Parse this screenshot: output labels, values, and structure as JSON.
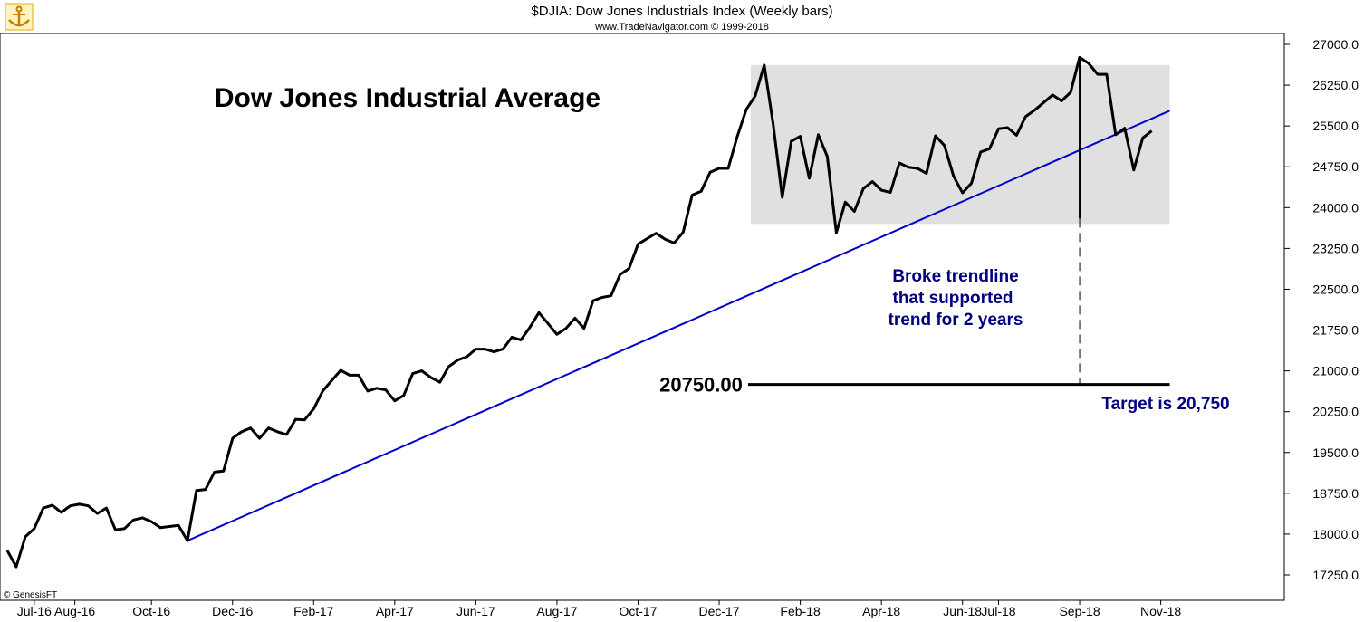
{
  "header": {
    "title": "$DJIA:  Dow Jones Industrials Index  (Weekly bars)",
    "subtitle": "www.TradeNavigator.com © 1999-2018"
  },
  "logo": {
    "icon": "anchor-logo-icon",
    "color": "#e0b000"
  },
  "watermark": "© GenesisFT",
  "colors": {
    "price": "#000000",
    "trendline": "#0000cc",
    "zone": "#e0e0e0",
    "annotation": "#000080"
  },
  "chart_data": {
    "type": "line",
    "title": "Dow Jones Industrial Average",
    "xlabel": "",
    "ylabel": "",
    "ylim": [
      16900,
      27250
    ],
    "grid": false,
    "y_ticks": [
      17250,
      18000,
      18750,
      19500,
      20250,
      21000,
      21750,
      22500,
      23250,
      24000,
      24750,
      25500,
      26250,
      27000
    ],
    "y_tick_labels": [
      "17250.0",
      "18000.0",
      "18750.0",
      "19500.0",
      "20250.0",
      "21000.0",
      "21750.0",
      "22500.0",
      "23250.0",
      "24000.0",
      "24750.0",
      "25500.0",
      "26250.0",
      "27000.0"
    ],
    "x_ticks": [
      {
        "label": "Jul-16",
        "week": 3
      },
      {
        "label": "Aug-16",
        "week": 7.5
      },
      {
        "label": "Oct-16",
        "week": 16
      },
      {
        "label": "Dec-16",
        "week": 25
      },
      {
        "label": "Feb-17",
        "week": 34
      },
      {
        "label": "Apr-17",
        "week": 43
      },
      {
        "label": "Jun-17",
        "week": 52
      },
      {
        "label": "Aug-17",
        "week": 61
      },
      {
        "label": "Oct-17",
        "week": 70
      },
      {
        "label": "Dec-17",
        "week": 79
      },
      {
        "label": "Feb-18",
        "week": 88
      },
      {
        "label": "Apr-18",
        "week": 97
      },
      {
        "label": "Jun-18",
        "week": 106
      },
      {
        "label": "Jul-18",
        "week": 110
      },
      {
        "label": "Sep-18",
        "week": 119
      },
      {
        "label": "Nov-18",
        "week": 128
      }
    ],
    "series": [
      {
        "weekly_close": [
          17700,
          17400,
          17950,
          18100,
          18480,
          18530,
          18400,
          18520,
          18550,
          18520,
          18380,
          18480,
          18080,
          18100,
          18260,
          18300,
          18230,
          18120,
          18140,
          18160,
          17880,
          18800,
          18820,
          19140,
          19160,
          19760,
          19880,
          19950,
          19760,
          19950,
          19880,
          19830,
          20110,
          20100,
          20300,
          20630,
          20820,
          21010,
          20920,
          20920,
          20630,
          20680,
          20650,
          20450,
          20550,
          20950,
          21000,
          20880,
          20790,
          21080,
          21200,
          21260,
          21400,
          21400,
          21350,
          21400,
          21620,
          21570,
          21800,
          22070,
          21870,
          21670,
          21780,
          21970,
          21780,
          22290,
          22350,
          22380,
          22770,
          22880,
          23330,
          23430,
          23530,
          23420,
          23350,
          23550,
          24230,
          24300,
          24650,
          24720,
          24720,
          25300,
          25800,
          26050,
          26620,
          25530,
          24190,
          25220,
          25310,
          24540,
          25340,
          24940,
          23540,
          24100,
          23930,
          24350,
          24480,
          24320,
          24280,
          24820,
          24740,
          24720,
          24630,
          25320,
          25140,
          24580,
          24270,
          24450,
          25020,
          25080,
          25450,
          25470,
          25330,
          25670,
          25790,
          25930,
          26070,
          25960,
          26120,
          26760,
          26650,
          26450,
          26450,
          25340,
          25460,
          24690,
          25280,
          25410
        ]
      }
    ],
    "trendline": {
      "from": {
        "week": 20,
        "value": 17880
      },
      "to": {
        "week": 129,
        "value": 25780
      }
    },
    "consolidation_zone": {
      "week_start": 82.5,
      "week_end": 129,
      "low": 23700,
      "high": 26620
    },
    "breakout_marker": {
      "week": 119,
      "high": 26730,
      "low": 23800
    },
    "target": {
      "value": 20750,
      "label": "20750.00",
      "week_start": 82.2,
      "week_end": 129
    },
    "annotations": {
      "title": "Dow Jones Industrial Average",
      "broke_line1": "Broke trendline",
      "broke_line2": "that supported",
      "broke_line3": "trend for 2 years",
      "target_text": "Target is 20,750"
    }
  }
}
